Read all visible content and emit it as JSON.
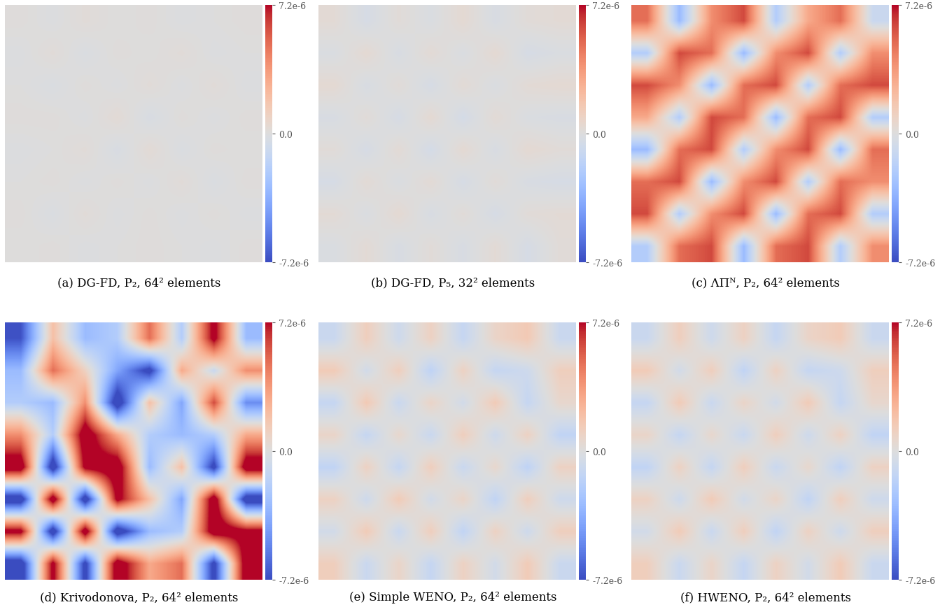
{
  "chart_data": [
    {
      "type": "heatmap",
      "title": "(a) DG-FD, P₂, 64² elements",
      "tick_labels": false,
      "colorbar": {
        "range": [
          -7.2e-06,
          7.2e-06
        ],
        "ticks": [
          {
            "value": -7.2e-06,
            "label": "-7.2e-6"
          },
          {
            "value": 0,
            "label": "0.0"
          },
          {
            "value": 7.2e-06,
            "label": "7.2e-6"
          }
        ]
      },
      "cells": [
        [
          1e-07,
          -1e-07,
          2e-07,
          0,
          1e-07,
          -1e-07,
          0,
          1e-07
        ],
        [
          -1e-07,
          2e-07,
          -2e-07,
          1e-07,
          0,
          2e-07,
          -1e-07,
          0
        ],
        [
          0,
          -2e-07,
          1e-07,
          -1e-07,
          2e-07,
          -1e-07,
          2e-07,
          -1e-07
        ],
        [
          1e-07,
          1e-07,
          -1e-07,
          3e-07,
          -3e-07,
          1e-07,
          -1e-07,
          1e-07
        ],
        [
          -1e-07,
          0,
          2e-07,
          -3e-07,
          3e-07,
          -2e-07,
          1e-07,
          0
        ],
        [
          0,
          1e-07,
          -1e-07,
          1e-07,
          -1e-07,
          2e-07,
          -2e-07,
          1e-07
        ],
        [
          1e-07,
          -2e-07,
          2e-07,
          -1e-07,
          1e-07,
          -1e-07,
          1e-07,
          -1e-07
        ],
        [
          0,
          1e-07,
          -1e-07,
          0,
          1e-07,
          0,
          -1e-07,
          1e-07
        ]
      ]
    },
    {
      "type": "heatmap",
      "title": "(b) DG-FD, P₅, 32² elements",
      "tick_labels": false,
      "colorbar": {
        "range": [
          -7.2e-06,
          7.2e-06
        ],
        "ticks": [
          {
            "value": -7.2e-06,
            "label": "-7.2e-6"
          },
          {
            "value": 0,
            "label": "0.0"
          },
          {
            "value": 7.2e-06,
            "label": "7.2e-6"
          }
        ]
      },
      "cells": [
        [
          3e-07,
          -4e-07,
          2e-07,
          -2e-07,
          4e-07,
          -3e-07,
          2e-07,
          3e-07
        ],
        [
          -2e-07,
          4e-07,
          -3e-07,
          3e-07,
          -2e-07,
          4e-07,
          -4e-07,
          -2e-07
        ],
        [
          4e-07,
          -3e-07,
          2e-07,
          -4e-07,
          3e-07,
          -2e-07,
          3e-07,
          4e-07
        ],
        [
          -3e-07,
          2e-07,
          -4e-07,
          4e-07,
          -5e-07,
          3e-07,
          -2e-07,
          -3e-07
        ],
        [
          2e-07,
          -4e-07,
          3e-07,
          -5e-07,
          4e-07,
          -3e-07,
          4e-07,
          2e-07
        ],
        [
          -4e-07,
          3e-07,
          -2e-07,
          3e-07,
          -4e-07,
          2e-07,
          -3e-07,
          -4e-07
        ],
        [
          3e-07,
          -2e-07,
          4e-07,
          -3e-07,
          2e-07,
          -4e-07,
          2e-07,
          3e-07
        ],
        [
          -2e-07,
          3e-07,
          -3e-07,
          2e-07,
          -3e-07,
          3e-07,
          -4e-07,
          2e-07
        ]
      ]
    },
    {
      "type": "heatmap",
      "title": "(c) ΛΠᴺ, P₂, 64² elements",
      "tick_labels": false,
      "colorbar": {
        "range": [
          -7.2e-06,
          7.2e-06
        ],
        "ticks": [
          {
            "value": -7.2e-06,
            "label": "-7.2e-6"
          },
          {
            "value": 0,
            "label": "0.0"
          },
          {
            "value": 7.2e-06,
            "label": "7.2e-6"
          }
        ]
      },
      "cells": [
        [
          5e-06,
          -3e-06,
          4e-06,
          6e-06,
          -2e-06,
          3e-06,
          5e-06,
          -1e-06
        ],
        [
          -2e-06,
          6e-06,
          5e-06,
          -3e-06,
          4e-06,
          6e-06,
          -2e-06,
          4e-06
        ],
        [
          6e-06,
          4e-06,
          -3e-06,
          5e-06,
          6e-06,
          -2e-06,
          5e-06,
          6e-06
        ],
        [
          3e-06,
          -2e-06,
          6e-06,
          5e-06,
          -3e-06,
          5e-06,
          6e-06,
          -2e-06
        ],
        [
          -3e-06,
          5e-06,
          6e-06,
          -2e-06,
          4e-06,
          6e-06,
          -3e-06,
          5e-06
        ],
        [
          5e-06,
          6e-06,
          -3e-06,
          4e-06,
          6e-06,
          -2e-06,
          5e-06,
          4e-06
        ],
        [
          6e-06,
          -2e-06,
          4e-06,
          6e-06,
          -3e-06,
          5e-06,
          6e-06,
          -2e-06
        ],
        [
          -2e-06,
          5e-06,
          6e-06,
          -3e-06,
          5e-06,
          6e-06,
          -2e-06,
          4e-06
        ]
      ]
    },
    {
      "type": "heatmap",
      "title": "(d) Krivodonova, P₂, 64² elements",
      "tick_labels": false,
      "colorbar": {
        "range": [
          -7.2e-06,
          7.2e-06
        ],
        "ticks": [
          {
            "value": -7.2e-06,
            "label": "-7.2e-6"
          },
          {
            "value": 0,
            "label": "0.0"
          },
          {
            "value": 7.2e-06,
            "label": "7.2e-6"
          }
        ]
      },
      "cells": [
        [
          -7e-06,
          2e-06,
          -3e-06,
          -2e-06,
          5e-06,
          -2e-06,
          8e-06,
          -3e-06
        ],
        [
          -3e-06,
          5e-06,
          1e-06,
          -4e-06,
          -8e-06,
          3e-06,
          -1e-06,
          4e-06
        ],
        [
          -2e-06,
          -3e-06,
          4e-06,
          -9e-06,
          2e-06,
          -4e-06,
          6e-06,
          -5e-06
        ],
        [
          4e-06,
          -2e-06,
          9e-06,
          3e-06,
          -2e-06,
          -3e-06,
          -2e-06,
          3e-06
        ],
        [
          9e-06,
          -9e-06,
          8e-06,
          9e-06,
          -3e-06,
          2e-06,
          -8e-06,
          9e-06
        ],
        [
          -9e-06,
          9e-06,
          -9e-06,
          8e-06,
          2e-06,
          -4e-06,
          9e-06,
          -9e-06
        ],
        [
          8e-06,
          -9e-06,
          9e-06,
          -9e-06,
          -3e-06,
          -2e-06,
          9e-06,
          8e-06
        ],
        [
          -9e-06,
          8e-06,
          -8e-06,
          9e-06,
          3e-06,
          5e-06,
          -8e-06,
          9e-06
        ]
      ]
    },
    {
      "type": "heatmap",
      "title": "(e) Simple WENO, P₂, 64² elements",
      "tick_labels": false,
      "colorbar": {
        "range": [
          -7.2e-06,
          7.2e-06
        ],
        "ticks": [
          {
            "value": -7.2e-06,
            "label": "-7.2e-6"
          },
          {
            "value": 0,
            "label": "0.0"
          },
          {
            "value": 7.2e-06,
            "label": "7.2e-6"
          }
        ]
      },
      "cells": [
        [
          -1e-06,
          1.2e-06,
          -8e-07,
          1e-06,
          -1.2e-06,
          8e-07,
          1.5e-06,
          -1e-06
        ],
        [
          1.4e-06,
          -6e-07,
          1.2e-06,
          -1.5e-06,
          1e-06,
          -1.2e-06,
          -8e-07,
          1.2e-06
        ],
        [
          -1.2e-06,
          1.5e-06,
          -1e-06,
          8e-07,
          -6e-07,
          1.4e-06,
          -1.2e-06,
          6e-07
        ],
        [
          8e-07,
          -1.2e-06,
          6e-07,
          -1e-06,
          1.2e-06,
          -8e-07,
          1e-06,
          -1.4e-06
        ],
        [
          -1.4e-06,
          1e-06,
          -1.2e-06,
          1.2e-06,
          -1e-06,
          6e-07,
          -1.5e-06,
          1e-06
        ],
        [
          1e-06,
          -8e-07,
          1.4e-06,
          -6e-07,
          8e-07,
          -1.4e-06,
          1.2e-06,
          -8e-07
        ],
        [
          -6e-07,
          1.4e-06,
          -1e-06,
          1.2e-06,
          -1.4e-06,
          1e-06,
          -8e-07,
          1.2e-06
        ],
        [
          1.2e-06,
          -1e-06,
          8e-07,
          -1.2e-06,
          1e-06,
          -6e-07,
          1.4e-06,
          -1e-06
        ]
      ]
    },
    {
      "type": "heatmap",
      "title": "(f) HWENO, P₂, 64² elements",
      "tick_labels": false,
      "colorbar": {
        "range": [
          -7.2e-06,
          7.2e-06
        ],
        "ticks": [
          {
            "value": -7.2e-06,
            "label": "-7.2e-6"
          },
          {
            "value": 0,
            "label": "0.0"
          },
          {
            "value": 7.2e-06,
            "label": "7.2e-6"
          }
        ]
      },
      "cells": [
        [
          -1e-06,
          1.2e-06,
          -8e-07,
          1e-06,
          -1.2e-06,
          8e-07,
          1.4e-06,
          -1e-06
        ],
        [
          1.4e-06,
          -6e-07,
          1.2e-06,
          -1.4e-06,
          1e-06,
          -1.2e-06,
          -8e-07,
          1.2e-06
        ],
        [
          -1.2e-06,
          1.4e-06,
          -1e-06,
          8e-07,
          -6e-07,
          1.4e-06,
          -1.2e-06,
          6e-07
        ],
        [
          8e-07,
          -1.2e-06,
          6e-07,
          -1e-06,
          1.2e-06,
          -8e-07,
          1e-06,
          -1.4e-06
        ],
        [
          -1.4e-06,
          1e-06,
          -1.2e-06,
          1.2e-06,
          -1e-06,
          6e-07,
          -1.4e-06,
          1e-06
        ],
        [
          1e-06,
          -8e-07,
          1.4e-06,
          -6e-07,
          8e-07,
          -1.4e-06,
          1.2e-06,
          -8e-07
        ],
        [
          -6e-07,
          1.4e-06,
          -1e-06,
          1.2e-06,
          -1.4e-06,
          1e-06,
          -8e-07,
          1.2e-06
        ],
        [
          1.2e-06,
          -1e-06,
          8e-07,
          -1.2e-06,
          1e-06,
          -6e-07,
          1.4e-06,
          -1e-06
        ]
      ]
    }
  ]
}
